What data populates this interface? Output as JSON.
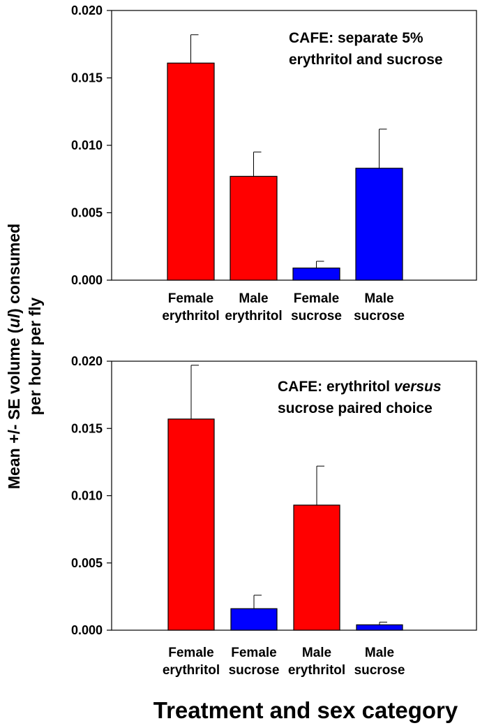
{
  "shared": {
    "ylabel_line1": "Mean +/- SE volume (",
    "ylabel_unit": "ul",
    "ylabel_line1_end": ") consumed",
    "ylabel_line2": "per hour per fly",
    "xlabel": "Treatment and sex category"
  },
  "colors": {
    "erythritol": "#ff0000",
    "sucrose": "#0000ff"
  },
  "chart_data": [
    {
      "type": "bar",
      "annotation": [
        "CAFE: separate 5%",
        "erythritol and sucrose"
      ],
      "ylim": [
        0,
        0.02
      ],
      "yticks": [
        "0.000",
        "0.005",
        "0.010",
        "0.015",
        "0.020"
      ],
      "categories": [
        [
          "Female",
          "erythritol"
        ],
        [
          "Male",
          "erythritol"
        ],
        [
          "Female",
          "sucrose"
        ],
        [
          "Male",
          "sucrose"
        ]
      ],
      "values": [
        0.0161,
        0.0077,
        0.0009,
        0.0083
      ],
      "errors": [
        0.0021,
        0.0018,
        0.0005,
        0.0029
      ],
      "series_key": [
        "erythritol",
        "erythritol",
        "sucrose",
        "sucrose"
      ]
    },
    {
      "type": "bar",
      "annotation": [
        "CAFE: erythritol ",
        "versus",
        "sucrose paired choice"
      ],
      "ylim": [
        0,
        0.02
      ],
      "yticks": [
        "0.000",
        "0.005",
        "0.010",
        "0.015",
        "0.020"
      ],
      "categories": [
        [
          "Female",
          "erythritol"
        ],
        [
          "Female",
          "sucrose"
        ],
        [
          "Male",
          "erythritol"
        ],
        [
          "Male",
          "sucrose"
        ]
      ],
      "values": [
        0.0157,
        0.0016,
        0.0093,
        0.0004
      ],
      "errors": [
        0.004,
        0.001,
        0.0029,
        0.0002
      ],
      "series_key": [
        "erythritol",
        "sucrose",
        "erythritol",
        "sucrose"
      ]
    }
  ]
}
